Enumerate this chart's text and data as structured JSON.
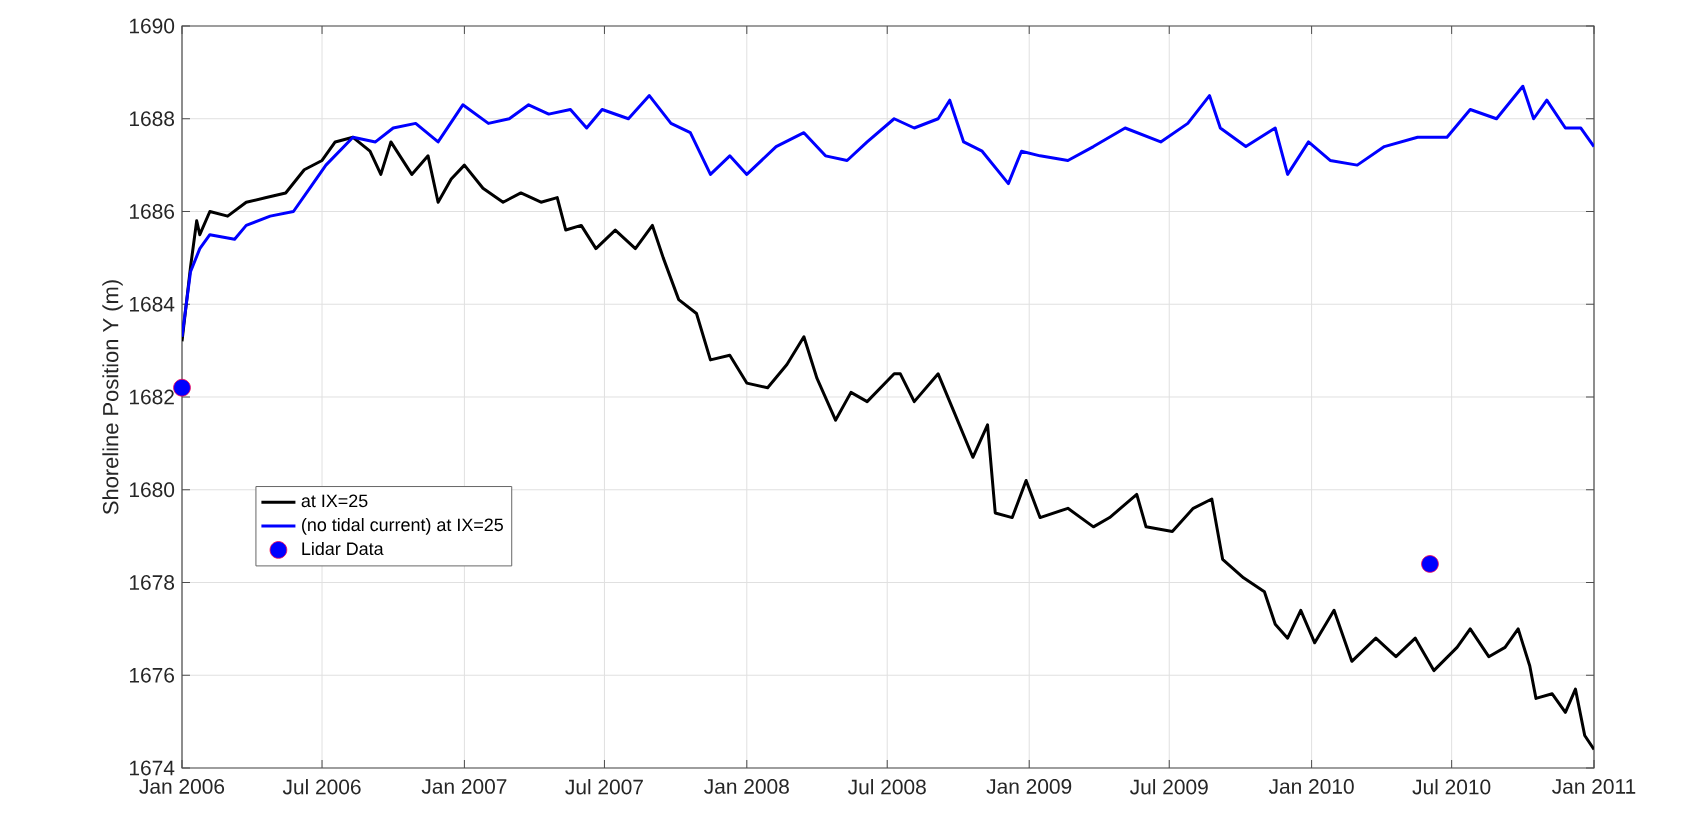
{
  "chart_data": {
    "type": "line",
    "ylabel": "Shoreline Position Y (m)",
    "xlim": [
      "2006-01-01",
      "2011-01-01"
    ],
    "xticks": [
      {
        "value": "2006-01-01",
        "label": "Jan 2006"
      },
      {
        "value": "2006-07-01",
        "label": "Jul 2006"
      },
      {
        "value": "2007-01-01",
        "label": "Jan 2007"
      },
      {
        "value": "2007-07-01",
        "label": "Jul 2007"
      },
      {
        "value": "2008-01-01",
        "label": "Jan 2008"
      },
      {
        "value": "2008-07-01",
        "label": "Jul 2008"
      },
      {
        "value": "2009-01-01",
        "label": "Jan 2009"
      },
      {
        "value": "2009-07-01",
        "label": "Jul 2009"
      },
      {
        "value": "2010-01-01",
        "label": "Jan 2010"
      },
      {
        "value": "2010-07-01",
        "label": "Jul 2010"
      },
      {
        "value": "2011-01-01",
        "label": "Jan 2011"
      }
    ],
    "ylim": [
      1674,
      1690
    ],
    "yticks": [
      1674,
      1676,
      1678,
      1680,
      1682,
      1684,
      1686,
      1688,
      1690
    ],
    "grid": true,
    "legend": "left",
    "series": [
      {
        "name": "at IX=25",
        "color": "#000000",
        "x": [
          "2006-01-01",
          "2006-01-12",
          "2006-01-20",
          "2006-01-24",
          "2006-02-06",
          "2006-03-01",
          "2006-03-25",
          "2006-04-20",
          "2006-05-15",
          "2006-06-08",
          "2006-07-01",
          "2006-07-18",
          "2006-08-10",
          "2006-09-01",
          "2006-09-15",
          "2006-09-28",
          "2006-10-25",
          "2006-11-15",
          "2006-11-28",
          "2006-12-15",
          "2007-01-01",
          "2007-01-25",
          "2007-02-20",
          "2007-03-15",
          "2007-04-10",
          "2007-05-01",
          "2007-05-12",
          "2007-06-01",
          "2007-06-20",
          "2007-07-15",
          "2007-08-10",
          "2007-09-01",
          "2007-09-15",
          "2007-10-05",
          "2007-10-28",
          "2007-11-15",
          "2007-12-10",
          "2008-01-01",
          "2008-01-28",
          "2008-02-22",
          "2008-03-15",
          "2008-04-01",
          "2008-04-25",
          "2008-05-15",
          "2008-06-05",
          "2008-07-10",
          "2008-07-18",
          "2008-08-05",
          "2008-09-05",
          "2008-09-25",
          "2008-10-20",
          "2008-11-08",
          "2008-11-18",
          "2008-12-10",
          "2008-12-28",
          "2009-01-15",
          "2009-02-20",
          "2009-03-25",
          "2009-04-15",
          "2009-05-20",
          "2009-06-01",
          "2009-07-05",
          "2009-08-01",
          "2009-08-25",
          "2009-09-08",
          "2009-10-05",
          "2009-11-01",
          "2009-11-15",
          "2009-12-01",
          "2009-12-18",
          "2010-01-05",
          "2010-01-30",
          "2010-02-22",
          "2010-03-25",
          "2010-04-20",
          "2010-05-15",
          "2010-06-08",
          "2010-07-08",
          "2010-07-25",
          "2010-08-18",
          "2010-09-08",
          "2010-09-25",
          "2010-10-10",
          "2010-10-18",
          "2010-11-08",
          "2010-11-25",
          "2010-12-08",
          "2010-12-20",
          "2011-01-01"
        ],
        "values": [
          1683.2,
          1684.8,
          1685.8,
          1685.5,
          1686.0,
          1685.9,
          1686.2,
          1686.3,
          1686.4,
          1686.9,
          1687.1,
          1687.5,
          1687.6,
          1687.3,
          1686.8,
          1687.5,
          1686.8,
          1687.2,
          1686.2,
          1686.7,
          1687.0,
          1686.5,
          1686.2,
          1686.4,
          1686.2,
          1686.3,
          1685.6,
          1685.7,
          1685.2,
          1685.6,
          1685.2,
          1685.7,
          1685.0,
          1684.1,
          1683.8,
          1682.8,
          1682.9,
          1682.3,
          1682.2,
          1682.7,
          1683.3,
          1682.4,
          1681.5,
          1682.1,
          1681.9,
          1682.5,
          1682.5,
          1681.9,
          1682.5,
          1681.7,
          1680.7,
          1681.4,
          1679.5,
          1679.4,
          1680.2,
          1679.4,
          1679.6,
          1679.2,
          1679.4,
          1679.9,
          1679.2,
          1679.1,
          1679.6,
          1679.8,
          1678.5,
          1678.1,
          1677.8,
          1677.1,
          1676.8,
          1677.4,
          1676.7,
          1677.4,
          1676.3,
          1676.8,
          1676.4,
          1676.8,
          1676.1,
          1676.6,
          1677.0,
          1676.4,
          1676.6,
          1677.0,
          1676.2,
          1675.5,
          1675.6,
          1675.2,
          1675.7,
          1674.7,
          1674.4
        ]
      },
      {
        "name": "(no tidal current) at IX=25",
        "color": "#0000ff",
        "x": [
          "2006-01-01",
          "2006-01-12",
          "2006-01-24",
          "2006-02-06",
          "2006-03-10",
          "2006-03-25",
          "2006-04-25",
          "2006-05-25",
          "2006-06-15",
          "2006-07-06",
          "2006-08-10",
          "2006-09-08",
          "2006-10-01",
          "2006-10-30",
          "2006-11-28",
          "2006-12-30",
          "2007-02-01",
          "2007-02-28",
          "2007-03-25",
          "2007-04-20",
          "2007-05-18",
          "2007-06-08",
          "2007-06-28",
          "2007-08-01",
          "2007-08-28",
          "2007-09-25",
          "2007-10-20",
          "2007-11-15",
          "2007-12-10",
          "2008-01-01",
          "2008-02-08",
          "2008-03-15",
          "2008-04-12",
          "2008-05-10",
          "2008-06-05",
          "2008-07-10",
          "2008-08-05",
          "2008-09-05",
          "2008-09-20",
          "2008-10-08",
          "2008-11-01",
          "2008-12-05",
          "2008-12-22",
          "2009-01-15",
          "2009-02-20",
          "2009-03-25",
          "2009-05-05",
          "2009-06-20",
          "2009-07-25",
          "2009-08-22",
          "2009-09-05",
          "2009-10-08",
          "2009-11-15",
          "2009-12-01",
          "2009-12-28",
          "2010-01-25",
          "2010-03-01",
          "2010-04-05",
          "2010-05-18",
          "2010-06-25",
          "2010-07-25",
          "2010-08-28",
          "2010-10-01",
          "2010-10-15",
          "2010-11-01",
          "2010-11-25",
          "2010-12-15",
          "2011-01-01"
        ],
        "values": [
          1683.3,
          1684.7,
          1685.2,
          1685.5,
          1685.4,
          1685.7,
          1685.9,
          1686.0,
          1686.5,
          1687.0,
          1687.6,
          1687.5,
          1687.8,
          1687.9,
          1687.5,
          1688.3,
          1687.9,
          1688.0,
          1688.3,
          1688.1,
          1688.2,
          1687.8,
          1688.2,
          1688.0,
          1688.5,
          1687.9,
          1687.7,
          1686.8,
          1687.2,
          1686.8,
          1687.4,
          1687.7,
          1687.2,
          1687.1,
          1687.5,
          1688.0,
          1687.8,
          1688.0,
          1688.4,
          1687.5,
          1687.3,
          1686.6,
          1687.3,
          1687.2,
          1687.1,
          1687.4,
          1687.8,
          1687.5,
          1687.9,
          1688.5,
          1687.8,
          1687.4,
          1687.8,
          1686.8,
          1687.5,
          1687.1,
          1687.0,
          1687.4,
          1687.6,
          1687.6,
          1688.2,
          1688.0,
          1688.7,
          1688.0,
          1688.4,
          1687.8,
          1687.8,
          1687.4
        ]
      },
      {
        "name": "Lidar Data",
        "color": "#0000ff",
        "type": "scatter",
        "marker": "circle",
        "x": [
          "2006-01-01",
          "2010-06-03"
        ],
        "values": [
          1682.2,
          1678.4
        ]
      }
    ]
  }
}
